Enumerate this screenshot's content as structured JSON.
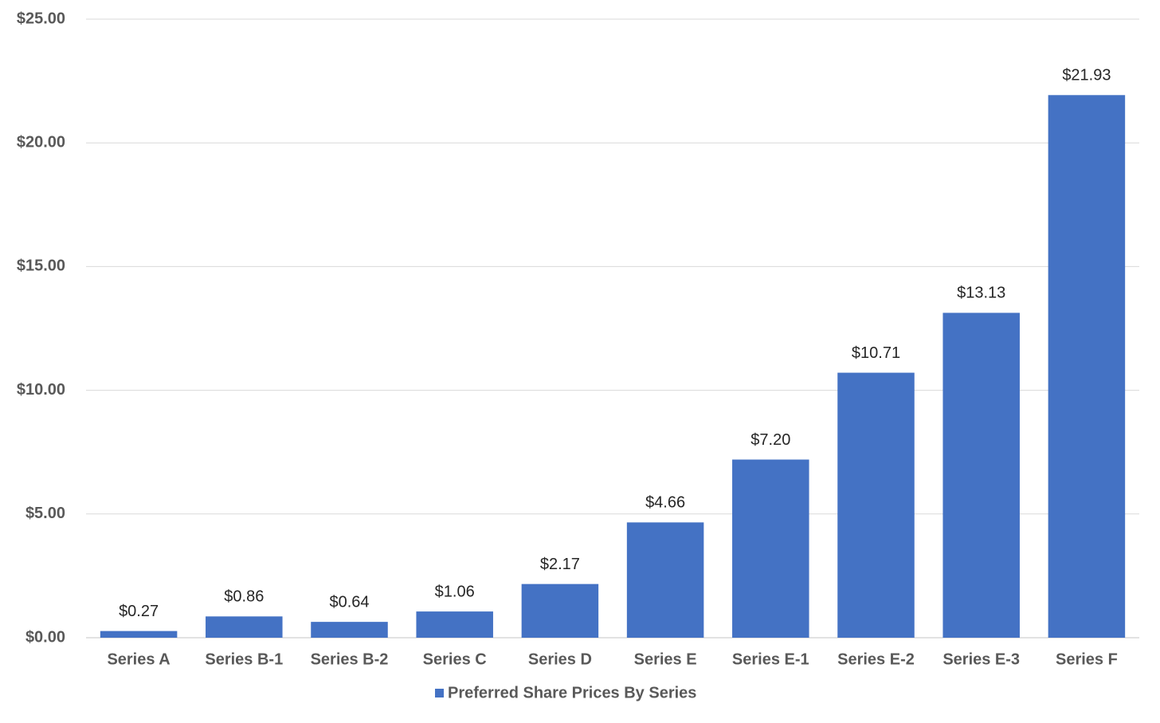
{
  "chart_data": {
    "type": "bar",
    "categories": [
      "Series A",
      "Series B-1",
      "Series B-2",
      "Series C",
      "Series D",
      "Series E",
      "Series E-1",
      "Series E-2",
      "Series E-3",
      "Series F"
    ],
    "series": [
      {
        "name": "Preferred Share Prices By Series",
        "color": "#4472c4",
        "values": [
          0.27,
          0.86,
          0.64,
          1.06,
          2.17,
          4.66,
          7.2,
          10.71,
          13.13,
          21.93
        ],
        "value_labels": [
          "$0.27",
          "$0.86",
          "$0.64",
          "$1.06",
          "$2.17",
          "$4.66",
          "$7.20",
          "$10.71",
          "$13.13",
          "$21.93"
        ]
      }
    ],
    "ylim": [
      0,
      25
    ],
    "yticks": [
      {
        "value": 0,
        "label": "$0.00"
      },
      {
        "value": 5,
        "label": "$5.00"
      },
      {
        "value": 10,
        "label": "$10.00"
      },
      {
        "value": 15,
        "label": "$15.00"
      },
      {
        "value": 20,
        "label": "$20.00"
      },
      {
        "value": 25,
        "label": "$25.00"
      }
    ],
    "grid": true,
    "legend": "bottom"
  }
}
